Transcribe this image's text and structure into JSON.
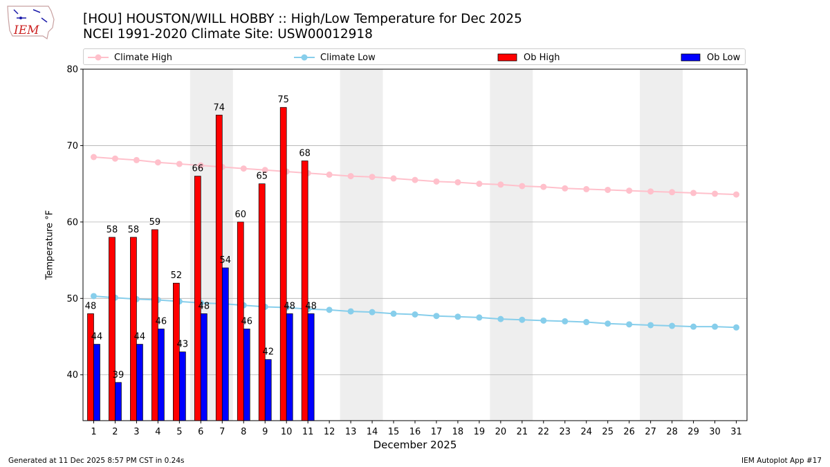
{
  "logo_text": "IEM",
  "footer": {
    "generated": "Generated at 11 Dec 2025 8:57 PM CST in 0.24s",
    "app": "IEM Autoplot App #17"
  },
  "chart_data": {
    "type": "bar",
    "title": "[HOU] HOUSTON/WILL HOBBY :: High/Low Temperature for Dec 2025",
    "subtitle": "NCEI 1991-2020 Climate Site: USW00012918",
    "xlabel": "December 2025",
    "ylabel": "Temperature °F",
    "ylim": [
      34,
      80
    ],
    "yticks": [
      40,
      50,
      60,
      70,
      80
    ],
    "days": [
      1,
      2,
      3,
      4,
      5,
      6,
      7,
      8,
      9,
      10,
      11,
      12,
      13,
      14,
      15,
      16,
      17,
      18,
      19,
      20,
      21,
      22,
      23,
      24,
      25,
      26,
      27,
      28,
      29,
      30,
      31
    ],
    "weekend_shading": [
      [
        6,
        7
      ],
      [
        13,
        14
      ],
      [
        20,
        21
      ],
      [
        27,
        28
      ]
    ],
    "grid": true,
    "legend_position": "top",
    "colors": {
      "climate_high": "#ffc0cb",
      "climate_low": "#87ceeb",
      "ob_high": "#ff0000",
      "ob_low": "#0000ff",
      "shading": "#eeeeee",
      "grid": "#b0b0b0"
    },
    "series": [
      {
        "name": "Climate High",
        "kind": "line",
        "values": [
          68.5,
          68.3,
          68.1,
          67.8,
          67.6,
          67.4,
          67.2,
          67.0,
          66.8,
          66.6,
          66.4,
          66.2,
          66.0,
          65.9,
          65.7,
          65.5,
          65.3,
          65.2,
          65.0,
          64.9,
          64.7,
          64.6,
          64.4,
          64.3,
          64.2,
          64.1,
          64.0,
          63.9,
          63.8,
          63.7,
          63.6
        ]
      },
      {
        "name": "Climate Low",
        "kind": "line",
        "values": [
          50.3,
          50.1,
          49.9,
          49.8,
          49.6,
          49.4,
          49.3,
          49.1,
          48.9,
          48.8,
          48.6,
          48.5,
          48.3,
          48.2,
          48.0,
          47.9,
          47.7,
          47.6,
          47.5,
          47.3,
          47.2,
          47.1,
          47.0,
          46.9,
          46.7,
          46.6,
          46.5,
          46.4,
          46.3,
          46.3,
          46.2
        ]
      },
      {
        "name": "Ob High",
        "kind": "bar",
        "values": [
          48,
          58,
          58,
          59,
          52,
          66,
          74,
          60,
          65,
          75,
          68
        ]
      },
      {
        "name": "Ob Low",
        "kind": "bar",
        "values": [
          44,
          39,
          44,
          46,
          43,
          48,
          54,
          46,
          42,
          48,
          48
        ]
      }
    ]
  }
}
